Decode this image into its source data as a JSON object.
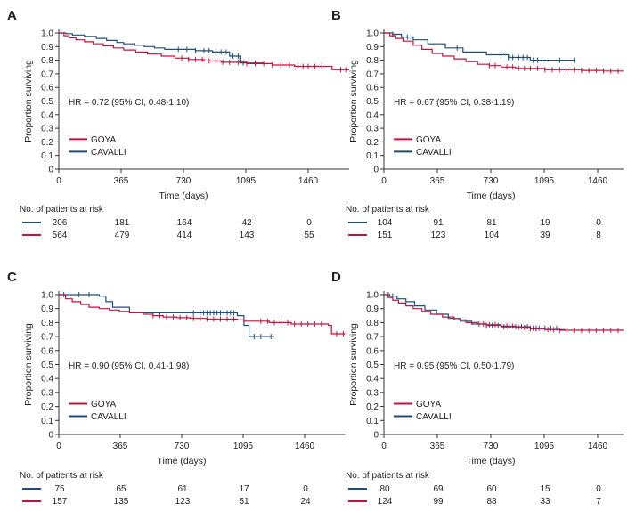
{
  "figure": {
    "colors": {
      "goya": "#c0143c",
      "cavalli": "#1f4e79",
      "axis": "#333333",
      "text": "#222222"
    }
  },
  "chart_data": [
    {
      "id": "A",
      "panel_label": "A",
      "type": "line",
      "title": "",
      "xlabel": "Time (days)",
      "ylabel": "Proportion surviving",
      "xlim": [
        0,
        1700
      ],
      "ylim": [
        0,
        1.0
      ],
      "xticks": [
        0,
        365,
        730,
        1095,
        1460
      ],
      "yticks": [
        "0",
        "0.1",
        "0.2",
        "0.3",
        "0.4",
        "0.5",
        "0.6",
        "0.7",
        "0.8",
        "0.9",
        "1.0"
      ],
      "hr_text": "HR = 0.72 (95% CI, 0.48-1.10)",
      "legend": [
        {
          "series": "GOYA",
          "label": "GOYA"
        },
        {
          "series": "CAVALLI",
          "label": "CAVALLI"
        }
      ],
      "series": [
        {
          "name": "CAVALLI",
          "x": [
            0,
            40,
            80,
            150,
            220,
            280,
            340,
            380,
            440,
            500,
            560,
            620,
            800,
            900,
            1000,
            1060
          ],
          "y": [
            1.0,
            0.995,
            0.985,
            0.975,
            0.96,
            0.945,
            0.93,
            0.92,
            0.91,
            0.9,
            0.89,
            0.88,
            0.87,
            0.86,
            0.83,
            0.78
          ],
          "end_x": 1200,
          "censor": [
            700,
            750,
            800,
            850,
            880,
            920,
            950,
            980,
            1020,
            1050,
            1080,
            1150
          ]
        },
        {
          "name": "GOYA",
          "x": [
            0,
            30,
            60,
            100,
            150,
            200,
            260,
            320,
            380,
            450,
            520,
            600,
            680,
            760,
            850,
            950,
            1100,
            1250,
            1380,
            1600
          ],
          "y": [
            1.0,
            0.98,
            0.965,
            0.95,
            0.935,
            0.92,
            0.905,
            0.89,
            0.875,
            0.86,
            0.845,
            0.83,
            0.815,
            0.805,
            0.795,
            0.785,
            0.775,
            0.765,
            0.755,
            0.73
          ],
          "end_x": 1700,
          "censor": [
            720,
            760,
            800,
            840,
            880,
            920,
            960,
            1000,
            1050,
            1100,
            1150,
            1200,
            1250,
            1300,
            1350,
            1400,
            1430,
            1460,
            1500,
            1540,
            1650,
            1680
          ]
        }
      ],
      "risk_table": {
        "title": "No. of patients at risk",
        "rows": [
          {
            "series": "CAVALLI",
            "values": [
              "206",
              "181",
              "164",
              "42",
              "0"
            ]
          },
          {
            "series": "GOYA",
            "values": [
              "564",
              "479",
              "414",
              "143",
              "55"
            ]
          }
        ]
      }
    },
    {
      "id": "B",
      "panel_label": "B",
      "type": "line",
      "title": "",
      "xlabel": "Time (days)",
      "ylabel": "Proportion surviving",
      "xlim": [
        0,
        1700
      ],
      "ylim": [
        0,
        1.0
      ],
      "xticks": [
        0,
        365,
        730,
        1095,
        1460
      ],
      "yticks": [
        "0",
        "0.1",
        "0.2",
        "0.3",
        "0.4",
        "0.5",
        "0.6",
        "0.7",
        "0.8",
        "0.9",
        "1.0"
      ],
      "hr_text": "HR = 0.67 (95% CI, 0.38-1.19)",
      "legend": [
        {
          "series": "GOYA",
          "label": "GOYA"
        },
        {
          "series": "CAVALLI",
          "label": "CAVALLI"
        }
      ],
      "series": [
        {
          "name": "CAVALLI",
          "x": [
            0,
            60,
            120,
            200,
            300,
            420,
            540,
            700,
            850,
            1000
          ],
          "y": [
            1.0,
            0.99,
            0.97,
            0.95,
            0.92,
            0.89,
            0.86,
            0.84,
            0.82,
            0.8
          ],
          "end_x": 1300,
          "censor": [
            60,
            160,
            500,
            800,
            850,
            880,
            920,
            950,
            980,
            1020,
            1050,
            1080,
            1200,
            1300
          ]
        },
        {
          "name": "GOYA",
          "x": [
            0,
            40,
            80,
            130,
            200,
            260,
            330,
            400,
            480,
            560,
            640,
            720,
            800,
            900,
            1100,
            1350,
            1500
          ],
          "y": [
            1.0,
            0.98,
            0.96,
            0.94,
            0.91,
            0.88,
            0.85,
            0.83,
            0.81,
            0.79,
            0.77,
            0.76,
            0.75,
            0.74,
            0.73,
            0.725,
            0.72
          ],
          "end_x": 1700,
          "censor": [
            720,
            760,
            800,
            840,
            880,
            920,
            960,
            1000,
            1050,
            1100,
            1150,
            1200,
            1250,
            1300,
            1350,
            1400,
            1450,
            1500,
            1550,
            1600,
            1650,
            1680
          ]
        }
      ],
      "risk_table": {
        "title": "No. of patients at risk",
        "rows": [
          {
            "series": "CAVALLI",
            "values": [
              "104",
              "91",
              "81",
              "19",
              "0"
            ]
          },
          {
            "series": "GOYA",
            "values": [
              "151",
              "123",
              "104",
              "39",
              "8"
            ]
          }
        ]
      }
    },
    {
      "id": "C",
      "panel_label": "C",
      "type": "line",
      "title": "",
      "xlabel": "Time (days)",
      "ylabel": "Proportion surviving",
      "xlim": [
        0,
        1700
      ],
      "ylim": [
        0,
        1.0
      ],
      "xticks": [
        0,
        365,
        730,
        1095,
        1460
      ],
      "yticks": [
        "0",
        "0.1",
        "0.2",
        "0.3",
        "0.4",
        "0.5",
        "0.6",
        "0.7",
        "0.8",
        "0.9",
        "1.0"
      ],
      "hr_text": "HR = 0.90 (95% CI, 0.41-1.98)",
      "legend": [
        {
          "series": "GOYA",
          "label": "GOYA"
        },
        {
          "series": "CAVALLI",
          "label": "CAVALLI"
        }
      ],
      "series": [
        {
          "name": "CAVALLI",
          "x": [
            0,
            240,
            280,
            320,
            420,
            1060,
            1100,
            1130
          ],
          "y": [
            1.0,
            0.99,
            0.95,
            0.91,
            0.87,
            0.85,
            0.78,
            0.7
          ],
          "end_x": 1280,
          "censor": [
            30,
            60,
            120,
            180,
            800,
            840,
            860,
            880,
            900,
            920,
            940,
            960,
            980,
            1000,
            1020,
            1040,
            1160,
            1200,
            1260
          ]
        },
        {
          "name": "GOYA",
          "x": [
            0,
            40,
            80,
            130,
            180,
            240,
            300,
            360,
            420,
            500,
            560,
            620,
            700,
            780,
            880,
            1060,
            1100,
            1250,
            1380,
            1600,
            1620
          ],
          "y": [
            1.0,
            0.97,
            0.95,
            0.93,
            0.91,
            0.9,
            0.89,
            0.88,
            0.87,
            0.86,
            0.85,
            0.84,
            0.835,
            0.83,
            0.825,
            0.82,
            0.81,
            0.8,
            0.79,
            0.78,
            0.72
          ],
          "end_x": 1700,
          "censor": [
            560,
            600,
            640,
            680,
            720,
            760,
            800,
            840,
            880,
            920,
            960,
            1000,
            1040,
            1200,
            1240,
            1280,
            1320,
            1360,
            1400,
            1440,
            1480,
            1520,
            1560,
            1650,
            1690
          ]
        }
      ],
      "risk_table": {
        "title": "No. of patients at risk",
        "rows": [
          {
            "series": "CAVALLI",
            "values": [
              "75",
              "65",
              "61",
              "17",
              "0"
            ]
          },
          {
            "series": "GOYA",
            "values": [
              "157",
              "135",
              "123",
              "51",
              "24"
            ]
          }
        ]
      }
    },
    {
      "id": "D",
      "panel_label": "D",
      "type": "line",
      "title": "",
      "xlabel": "Time (days)",
      "ylabel": "Proportion surviving",
      "xlim": [
        0,
        1700
      ],
      "ylim": [
        0,
        1.0
      ],
      "xticks": [
        0,
        365,
        730,
        1095,
        1460
      ],
      "yticks": [
        "0",
        "0.1",
        "0.2",
        "0.3",
        "0.4",
        "0.5",
        "0.6",
        "0.7",
        "0.8",
        "0.9",
        "1.0"
      ],
      "hr_text": "HR = 0.95 (95% CI, 0.50-1.79)",
      "legend": [
        {
          "series": "GOYA",
          "label": "GOYA"
        },
        {
          "series": "CAVALLI",
          "label": "CAVALLI"
        }
      ],
      "series": [
        {
          "name": "CAVALLI",
          "x": [
            0,
            40,
            90,
            150,
            210,
            280,
            360,
            440,
            520,
            600,
            700,
            800,
            1000,
            1200
          ],
          "y": [
            1.0,
            0.99,
            0.97,
            0.95,
            0.92,
            0.89,
            0.86,
            0.83,
            0.81,
            0.79,
            0.78,
            0.77,
            0.76,
            0.75
          ],
          "end_x": 1240,
          "censor": [
            30,
            60,
            650,
            700,
            740,
            780,
            820,
            860,
            900,
            940,
            980,
            1000,
            1020,
            1040,
            1060,
            1080,
            1100,
            1140,
            1180
          ]
        },
        {
          "name": "GOYA",
          "x": [
            0,
            30,
            60,
            100,
            150,
            200,
            260,
            320,
            400,
            480,
            560,
            640,
            700,
            800,
            900,
            1000,
            1100,
            1200
          ],
          "y": [
            1.0,
            0.98,
            0.96,
            0.94,
            0.92,
            0.9,
            0.88,
            0.86,
            0.84,
            0.82,
            0.8,
            0.79,
            0.785,
            0.775,
            0.765,
            0.755,
            0.75,
            0.745
          ],
          "end_x": 1700,
          "censor": [
            680,
            720,
            760,
            800,
            840,
            880,
            920,
            960,
            1000,
            1040,
            1080,
            1120,
            1160,
            1200,
            1250,
            1300,
            1350,
            1400,
            1450,
            1500,
            1550,
            1600,
            1650,
            1690
          ]
        }
      ],
      "risk_table": {
        "title": "No. of patients at risk",
        "rows": [
          {
            "series": "CAVALLI",
            "values": [
              "80",
              "69",
              "60",
              "15",
              "0"
            ]
          },
          {
            "series": "GOYA",
            "values": [
              "124",
              "99",
              "88",
              "33",
              "7"
            ]
          }
        ]
      }
    }
  ]
}
